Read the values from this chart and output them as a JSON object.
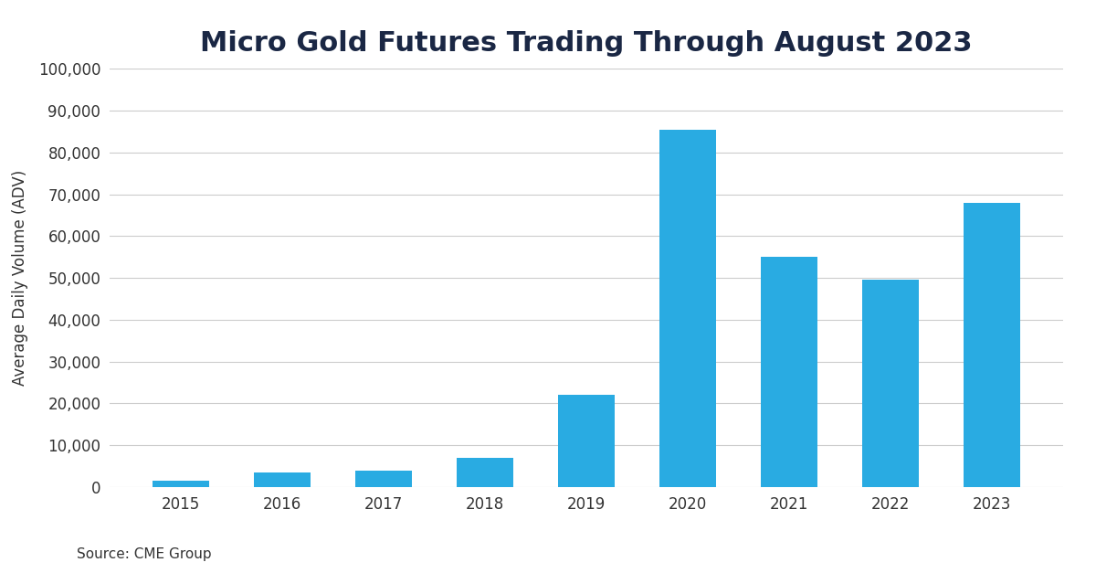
{
  "title": "Micro Gold Futures Trading Through August 2023",
  "xlabel": "",
  "ylabel": "Average Daily Volume (ADV)",
  "categories": [
    "2015",
    "2016",
    "2017",
    "2018",
    "2019",
    "2020",
    "2021",
    "2022",
    "2023"
  ],
  "values": [
    1500,
    3500,
    4000,
    7000,
    22000,
    85500,
    55000,
    49500,
    68000
  ],
  "bar_color": "#29ABE2",
  "background_color": "#FFFFFF",
  "title_color": "#1a2744",
  "axis_label_color": "#333333",
  "tick_color": "#333333",
  "grid_color": "#cccccc",
  "source_text": "Source: CME Group",
  "ylim": [
    0,
    100000
  ],
  "yticks": [
    0,
    10000,
    20000,
    30000,
    40000,
    50000,
    60000,
    70000,
    80000,
    90000,
    100000
  ],
  "title_fontsize": 22,
  "ylabel_fontsize": 12,
  "tick_fontsize": 12,
  "source_fontsize": 11,
  "bar_width": 0.55
}
